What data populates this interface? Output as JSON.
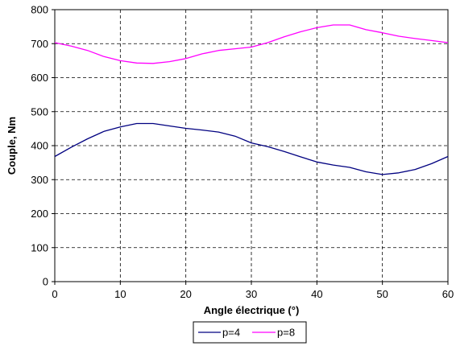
{
  "chart_data": {
    "type": "line",
    "title": "",
    "xlabel": "Angle électrique (°)",
    "ylabel": "Couple, Nm",
    "xlim": [
      0,
      60
    ],
    "ylim": [
      0,
      800
    ],
    "x_ticks": [
      "0",
      "10",
      "20",
      "30",
      "40",
      "50",
      "60"
    ],
    "y_ticks": [
      "0",
      "100",
      "200",
      "300",
      "400",
      "500",
      "600",
      "700",
      "800"
    ],
    "grid": true,
    "legend_position": "bottom-center",
    "series": [
      {
        "name": "p=4",
        "color": "#000080",
        "x": [
          0,
          2.5,
          5,
          7.5,
          10,
          12.5,
          15,
          17.5,
          20,
          22.5,
          25,
          27.5,
          30,
          32.5,
          35,
          37.5,
          40,
          42.5,
          45,
          47.5,
          50,
          52.5,
          55,
          57.5,
          60
        ],
        "values": [
          368,
          395,
          420,
          442,
          455,
          465,
          465,
          458,
          451,
          446,
          440,
          428,
          408,
          397,
          383,
          367,
          352,
          343,
          336,
          323,
          315,
          320,
          330,
          347,
          368
        ]
      },
      {
        "name": "p=8",
        "color": "#FF00FF",
        "x": [
          0,
          2.5,
          5,
          7.5,
          10,
          12.5,
          15,
          17.5,
          20,
          22.5,
          25,
          27.5,
          30,
          32.5,
          35,
          37.5,
          40,
          42.5,
          45,
          47.5,
          50,
          52.5,
          55,
          57.5,
          60
        ],
        "values": [
          703,
          693,
          680,
          662,
          650,
          643,
          642,
          647,
          656,
          670,
          680,
          685,
          690,
          703,
          720,
          735,
          747,
          755,
          755,
          741,
          732,
          722,
          715,
          709,
          703
        ]
      }
    ]
  }
}
